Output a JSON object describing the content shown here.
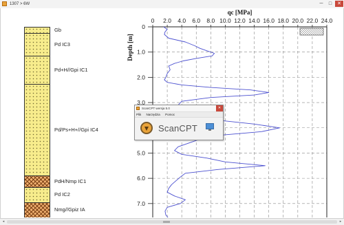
{
  "window": {
    "title": "1307 > 6W",
    "minimize": "─",
    "maximize": "□",
    "close": "✕"
  },
  "layers": [
    {
      "label": "Gb",
      "pattern": "sand",
      "from": 0.0,
      "to": 0.25
    },
    {
      "label": "Pd  IC3",
      "pattern": "sand",
      "from": 0.25,
      "to": 1.15
    },
    {
      "label": "Pd+H//Gpi  IC1",
      "pattern": "sand",
      "from": 1.15,
      "to": 2.25
    },
    {
      "label": "Pd/Ps+H+//Gpi  IC4",
      "pattern": "sand",
      "from": 2.25,
      "to": 5.9
    },
    {
      "label": "PdH/Nmp  IC1",
      "pattern": "hatch",
      "from": 5.9,
      "to": 6.35
    },
    {
      "label": "Pd  IC2",
      "pattern": "sand",
      "from": 6.35,
      "to": 6.95
    },
    {
      "label": "Nmg//Gpiz  IA",
      "pattern": "hatch",
      "from": 6.95,
      "to": 7.55
    }
  ],
  "chart_data": {
    "type": "line",
    "title": "qc [MPa]",
    "xlabel": "qc [MPa]",
    "ylabel": "Depth [m]",
    "xlim": [
      0,
      24.0
    ],
    "ylim": [
      7.55,
      0
    ],
    "x_ticks": [
      "0",
      "2.0",
      "4.0",
      "6.0",
      "8.0",
      "10.0",
      "12.0",
      "14.0",
      "16.0",
      "18.0",
      "20.0",
      "22.0",
      "24.0"
    ],
    "y_ticks": [
      "0",
      "1.0",
      "2.0",
      "3.0",
      "4.0",
      "5.0",
      "6.0",
      "7.0"
    ],
    "grid": true,
    "series": [
      {
        "depth": [
          0.0,
          0.1,
          0.2,
          0.3,
          0.45,
          0.6,
          0.75,
          0.85,
          0.95,
          1.05,
          1.15,
          1.25,
          1.35,
          1.45,
          1.55,
          1.7,
          1.85,
          2.0,
          2.1,
          2.2,
          2.3,
          2.4,
          2.5,
          2.6,
          2.7,
          2.8,
          2.95,
          3.1,
          3.25,
          3.4,
          3.55,
          3.7,
          3.85,
          4.0,
          4.15,
          4.3,
          4.45,
          4.6,
          4.75,
          4.9,
          5.05,
          5.2,
          5.35,
          5.5,
          5.65,
          5.8,
          5.95,
          6.1,
          6.25,
          6.4,
          6.55,
          6.7,
          6.85,
          7.0,
          7.15,
          7.3,
          7.45,
          7.55
        ],
        "qc": [
          1.5,
          2.0,
          1.7,
          1.6,
          2.2,
          4.5,
          5.8,
          6.5,
          7.5,
          8.5,
          8.2,
          6.0,
          4.2,
          3.0,
          2.2,
          2.4,
          2.0,
          1.8,
          1.6,
          2.0,
          4.0,
          8.0,
          13.5,
          16.0,
          14.0,
          8.0,
          4.0,
          3.5,
          3.0,
          3.2,
          5.0,
          9.0,
          14.0,
          17.5,
          15.0,
          9.0,
          6.5,
          5.0,
          3.5,
          3.0,
          4.0,
          7.5,
          10.0,
          15.5,
          9.0,
          4.5,
          3.8,
          3.2,
          2.6,
          2.2,
          2.0,
          3.0,
          4.5,
          3.8,
          2.0,
          1.7,
          1.8,
          2.1
        ]
      }
    ]
  },
  "popup": {
    "title": "ScanCPT wersja 5.0",
    "menu": [
      "Plik",
      "Narzędzia",
      "Pomoc"
    ],
    "brand": "ScanCPT",
    "close": "✕"
  },
  "scrollbar": {
    "left_arrow": "◂",
    "right_arrow": "▸"
  }
}
